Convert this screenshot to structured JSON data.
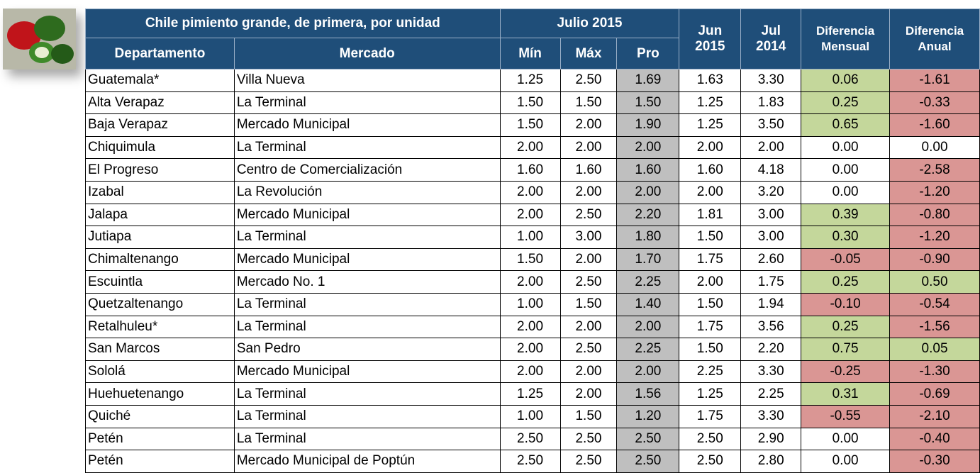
{
  "table": {
    "header": {
      "title": "Chile pimiento grande, de primera, por unidad",
      "period": "Julio 2015",
      "jun": [
        "Jun",
        "2015"
      ],
      "jul": [
        "Jul",
        "2014"
      ],
      "dif_mensual": [
        "Diferencia",
        "Mensual"
      ],
      "dif_anual": [
        "Diferencia",
        "Anual"
      ],
      "columns": [
        "Departamento",
        "Mercado",
        "Mín",
        "Máx",
        "Pro"
      ]
    },
    "rows": [
      [
        "Guatemala*",
        "Villa Nueva",
        "1.25",
        "2.50",
        "1.69",
        "1.63",
        "3.30",
        "0.06",
        "-1.61"
      ],
      [
        "Alta Verapaz",
        "La Terminal",
        "1.50",
        "1.50",
        "1.50",
        "1.25",
        "1.83",
        "0.25",
        "-0.33"
      ],
      [
        "Baja Verapaz",
        "Mercado Municipal",
        "1.50",
        "2.00",
        "1.90",
        "1.25",
        "3.50",
        "0.65",
        "-1.60"
      ],
      [
        "Chiquimula",
        "La Terminal",
        "2.00",
        "2.00",
        "2.00",
        "2.00",
        "2.00",
        "0.00",
        "0.00"
      ],
      [
        "El Progreso",
        "Centro de Comercialización",
        "1.60",
        "1.60",
        "1.60",
        "1.60",
        "4.18",
        "0.00",
        "-2.58"
      ],
      [
        "Izabal",
        "La Revolución",
        "2.00",
        "2.00",
        "2.00",
        "2.00",
        "3.20",
        "0.00",
        "-1.20"
      ],
      [
        "Jalapa",
        "Mercado Municipal",
        "2.00",
        "2.50",
        "2.20",
        "1.81",
        "3.00",
        "0.39",
        "-0.80"
      ],
      [
        "Jutiapa",
        "La Terminal",
        "1.00",
        "3.00",
        "1.80",
        "1.50",
        "3.00",
        "0.30",
        "-1.20"
      ],
      [
        "Chimaltenango",
        "Mercado Municipal",
        "1.50",
        "2.00",
        "1.70",
        "1.75",
        "2.60",
        "-0.05",
        "-0.90"
      ],
      [
        "Escuintla",
        "Mercado No. 1",
        "2.00",
        "2.50",
        "2.25",
        "2.00",
        "1.75",
        "0.25",
        "0.50"
      ],
      [
        "Quetzaltenango",
        "La Terminal",
        "1.00",
        "1.50",
        "1.40",
        "1.50",
        "1.94",
        "-0.10",
        "-0.54"
      ],
      [
        "Retalhuleu*",
        "La Terminal",
        "2.00",
        "2.00",
        "2.00",
        "1.75",
        "3.56",
        "0.25",
        "-1.56"
      ],
      [
        "San Marcos",
        "San Pedro",
        "2.00",
        "2.50",
        "2.25",
        "1.50",
        "2.20",
        "0.75",
        "0.05"
      ],
      [
        "Sololá",
        "Mercado Municipal",
        "2.00",
        "2.00",
        "2.00",
        "2.25",
        "3.30",
        "-0.25",
        "-1.30"
      ],
      [
        "Huehuetenango",
        "La Terminal",
        "1.25",
        "2.00",
        "1.56",
        "1.25",
        "2.25",
        "0.31",
        "-0.69"
      ],
      [
        "Quiché",
        "La Terminal",
        "1.00",
        "1.50",
        "1.20",
        "1.75",
        "3.30",
        "-0.55",
        "-2.10"
      ],
      [
        "Petén",
        "La Terminal",
        "2.50",
        "2.50",
        "2.50",
        "2.50",
        "2.90",
        "0.00",
        "-0.40"
      ],
      [
        "Petén",
        "Mercado Municipal de Poptún",
        "2.50",
        "2.50",
        "2.50",
        "2.50",
        "2.80",
        "0.00",
        "-0.30"
      ]
    ]
  }
}
